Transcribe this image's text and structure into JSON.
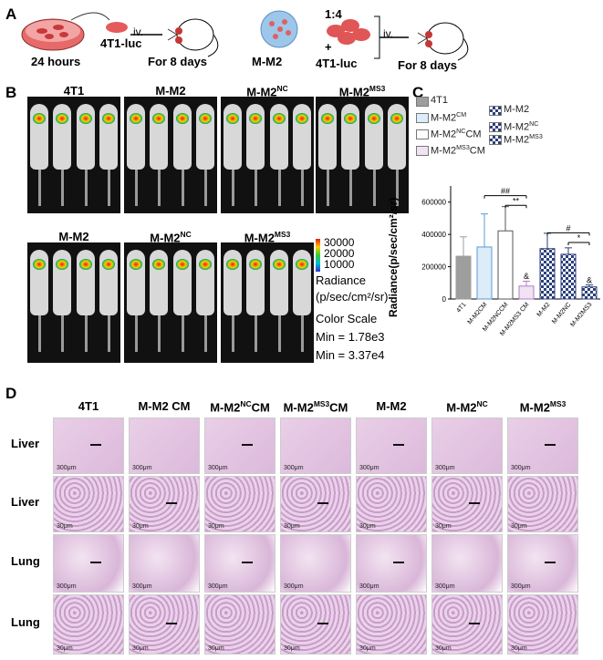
{
  "panelA": {
    "label": "A",
    "left": {
      "cell": "4T1-luc",
      "time": "24 hours",
      "route": "iv.",
      "duration": "For 8 days"
    },
    "right": {
      "ratio": "1:4",
      "plus": "+",
      "m2": "M-M2",
      "cell": "4T1-luc",
      "route": "iv.",
      "duration": "For 8 days"
    }
  },
  "panelB": {
    "label": "B",
    "row1": [
      "4T1",
      "M-M2",
      "M-M2",
      "M-M2"
    ],
    "row1_sup": [
      "",
      "",
      "NC",
      "MS3"
    ],
    "row2": [
      "M-M2",
      "M-M2",
      "M-M2"
    ],
    "row2_sup": [
      "",
      "NC",
      "MS3"
    ],
    "colorbar": {
      "ticks": [
        "30000",
        "20000",
        "10000"
      ],
      "unit1": "Radiance",
      "unit2": "(p/sec/cm²/sr)",
      "scale": "Color Scale",
      "min1": "Min = 1.78e3",
      "min2": "Min = 3.37e4"
    }
  },
  "panelC": {
    "label": "C",
    "legend": [
      {
        "text": "4T1",
        "sup": "",
        "after": "",
        "fill": "#9e9e9e"
      },
      {
        "text": "M-M2",
        "sup": "CM",
        "after": "",
        "fill": "#dcecf8"
      },
      {
        "text": "M-M2",
        "sup": "NC",
        "after": "CM",
        "fill": "#ffffff"
      },
      {
        "text": "M-M2",
        "sup": "MS3",
        "after": "CM",
        "fill": "#f1e3f4"
      },
      {
        "text": "M-M2",
        "sup": "",
        "after": "",
        "fill": "check"
      },
      {
        "text": "M-M2",
        "sup": "NC",
        "after": "",
        "fill": "check"
      },
      {
        "text": "M-M2",
        "sup": "MS3",
        "after": "",
        "fill": "check"
      }
    ],
    "sig": {
      "s1": "##",
      "s2": "**",
      "s3": "&",
      "s4": "#",
      "s5": "*",
      "s6": "&"
    }
  },
  "chart_data": {
    "type": "bar",
    "ylabel": "Radiance(p/sec/cm²/sr)",
    "ylim": [
      0,
      700000
    ],
    "yticks": [
      "600000",
      "400000",
      "200000",
      "0"
    ],
    "categories": [
      "4T1",
      "M-M2CM",
      "M-M2NCCM",
      "M-M2MS3 CM",
      "M-M2",
      "M-M2NC",
      "M-M2MS3"
    ],
    "values": [
      265000,
      322000,
      422000,
      80000,
      312000,
      277000,
      75000
    ],
    "errors": [
      120000,
      205000,
      150000,
      30000,
      95000,
      40000,
      12000
    ],
    "colors": [
      "#9e9e9e",
      "#dcecf8",
      "#ffffff",
      "#f1e3f4",
      "check",
      "check",
      "check"
    ],
    "edge": [
      "#9e9e9e",
      "#5b9bd5",
      "#555555",
      "#b07cc6",
      "#2b3f7a",
      "#2b3f7a",
      "#2b3f7a"
    ]
  },
  "panelD": {
    "label": "D",
    "columns": [
      {
        "t": "4T1",
        "s": "",
        "a": ""
      },
      {
        "t": "M-M2 CM",
        "s": "",
        "a": ""
      },
      {
        "t": "M-M2",
        "s": "NC",
        "a": "CM"
      },
      {
        "t": "M-M2",
        "s": "MS3",
        "a": "CM"
      },
      {
        "t": "M-M2",
        "s": "",
        "a": ""
      },
      {
        "t": "M-M2",
        "s": "NC",
        "a": ""
      },
      {
        "t": "M-M2",
        "s": "MS3",
        "a": ""
      }
    ],
    "rows": [
      "Liver",
      "Liver",
      "Lung",
      "Lung"
    ],
    "scales": [
      "300μm",
      "30μm",
      "300μm",
      "30μm"
    ]
  }
}
